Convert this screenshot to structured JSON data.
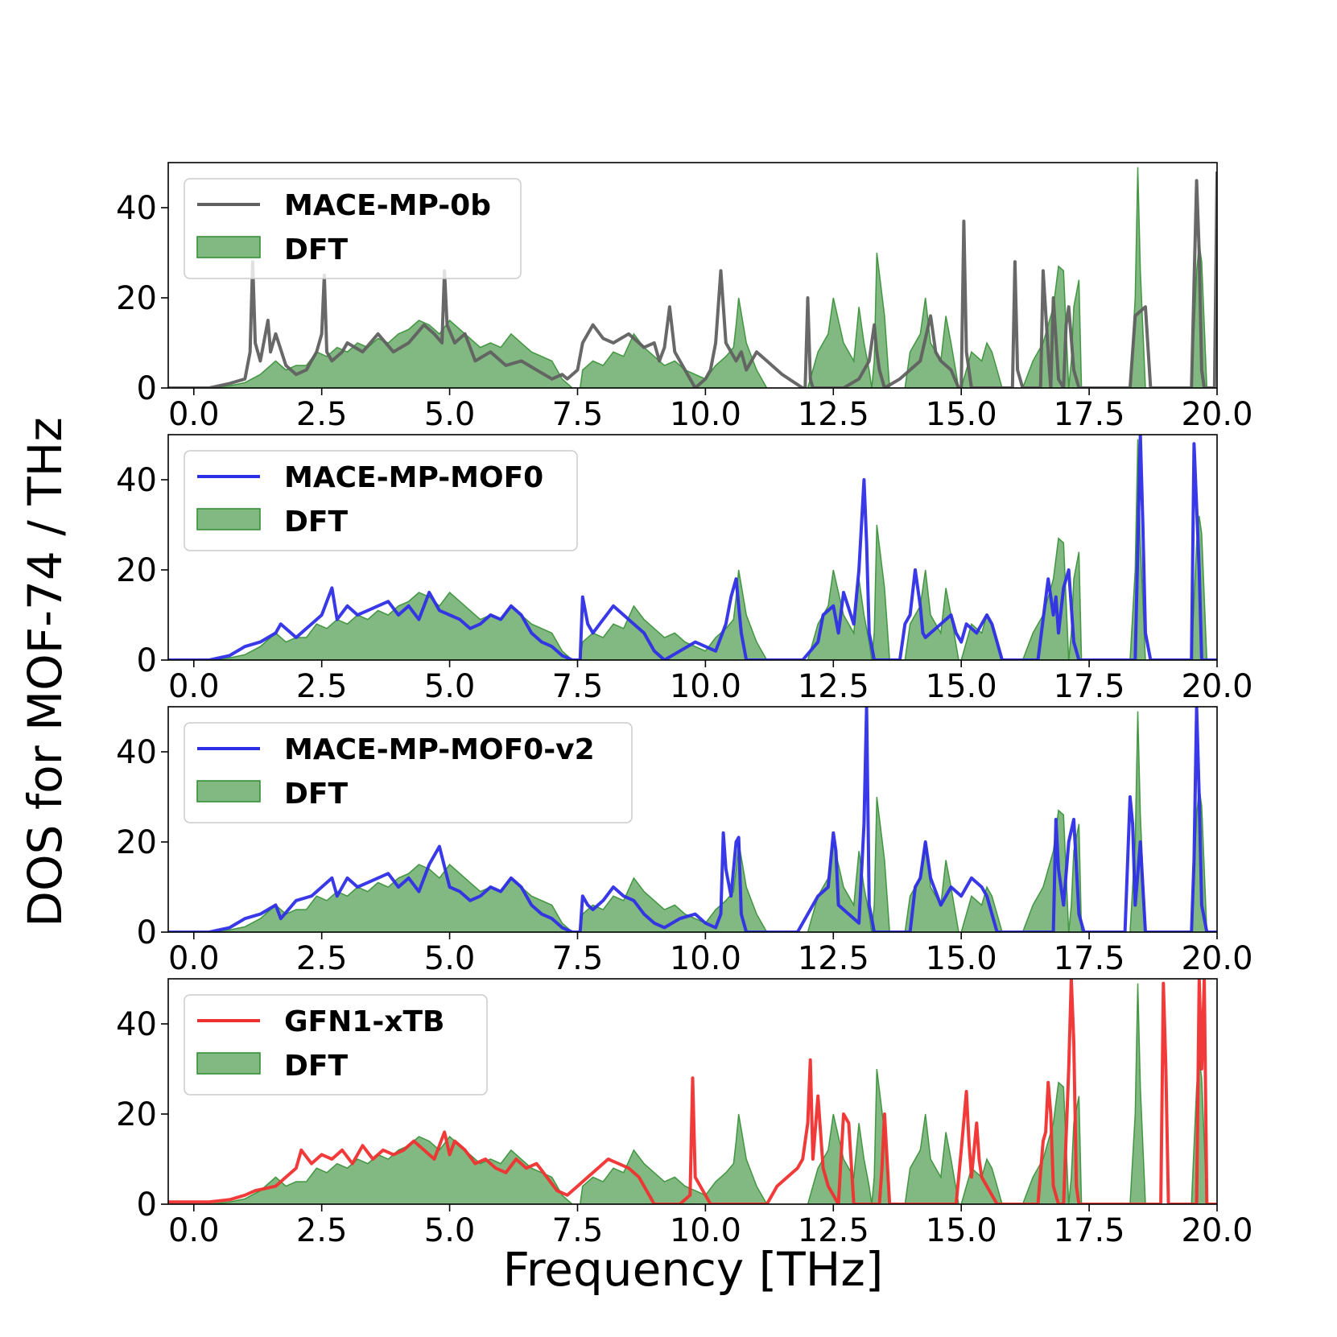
{
  "chart_data": {
    "type": "area",
    "ylabel": "DOS for MOF-74 / THz",
    "xlabel": "Frequency [THz]",
    "xlim": [
      -0.5,
      20.0
    ],
    "ylim": [
      0,
      50
    ],
    "xticks": [
      "0.0",
      "2.5",
      "5.0",
      "7.5",
      "10.0",
      "12.5",
      "15.0",
      "17.5",
      "20.0"
    ],
    "yticks": [
      "0",
      "20",
      "40"
    ],
    "reference": {
      "name": "DFT",
      "color": "#2e8b2e",
      "x": [
        -0.5,
        0.3,
        0.7,
        1.0,
        1.3,
        1.6,
        1.8,
        2.0,
        2.2,
        2.4,
        2.6,
        2.8,
        3.0,
        3.2,
        3.4,
        3.6,
        3.8,
        4.0,
        4.2,
        4.4,
        4.6,
        4.8,
        5.0,
        5.2,
        5.4,
        5.6,
        5.8,
        6.0,
        6.2,
        6.4,
        6.6,
        6.8,
        7.0,
        7.2,
        7.4,
        7.55,
        7.6,
        7.8,
        8.0,
        8.2,
        8.4,
        8.6,
        8.8,
        9.0,
        9.2,
        9.4,
        9.6,
        9.8,
        10.0,
        10.2,
        10.4,
        10.55,
        10.6,
        10.65,
        10.8,
        11.0,
        11.2,
        11.5,
        11.7,
        12.0,
        12.2,
        12.4,
        12.5,
        12.7,
        12.9,
        13.0,
        13.1,
        13.2,
        13.25,
        13.3,
        13.35,
        13.5,
        13.6,
        13.7,
        13.9,
        14.0,
        14.2,
        14.3,
        14.4,
        14.6,
        14.7,
        14.8,
        14.95,
        15.0,
        15.2,
        15.4,
        15.5,
        15.6,
        15.7,
        15.8,
        16.0,
        16.2,
        16.4,
        16.6,
        16.8,
        16.9,
        17.0,
        17.1,
        17.15,
        17.2,
        17.3,
        17.35,
        17.4,
        17.5,
        17.6,
        17.8,
        18.0,
        18.2,
        18.3,
        18.4,
        18.45,
        18.5,
        18.6,
        18.7,
        18.9,
        19.1,
        19.3,
        19.5,
        19.6,
        19.65,
        19.7,
        19.8,
        20.0
      ],
      "y": [
        0,
        0,
        0.5,
        1.2,
        3,
        6,
        4,
        5,
        5,
        8,
        7,
        9,
        8,
        10,
        9,
        11,
        10,
        12,
        13,
        15,
        14,
        12,
        15,
        13,
        11,
        9,
        10,
        9,
        12,
        10,
        8,
        7,
        6,
        2,
        0,
        0,
        4,
        6,
        5,
        8,
        7,
        12,
        9,
        7,
        5,
        6,
        4,
        3,
        2,
        5,
        7,
        9,
        14,
        20,
        10,
        4,
        0,
        0,
        0,
        0,
        8,
        12,
        20,
        10,
        6,
        18,
        10,
        4,
        0,
        6,
        30,
        16,
        0,
        0,
        0,
        8,
        12,
        20,
        10,
        6,
        16,
        10,
        0,
        0,
        8,
        6,
        10,
        8,
        4,
        0,
        0,
        0,
        6,
        10,
        18,
        27,
        26,
        0,
        6,
        18,
        24,
        0,
        0,
        0,
        0,
        0,
        0,
        0,
        0,
        20,
        49,
        26,
        0,
        0,
        0,
        0,
        0,
        0,
        26,
        32,
        28,
        0,
        0
      ]
    },
    "panels": [
      {
        "legend": "MACE-MP-0b",
        "color": "#606060",
        "x": [
          -0.5,
          0.3,
          0.7,
          1.0,
          1.1,
          1.15,
          1.2,
          1.3,
          1.45,
          1.5,
          1.6,
          1.8,
          2.0,
          2.2,
          2.4,
          2.5,
          2.55,
          2.6,
          2.7,
          2.9,
          3.0,
          3.3,
          3.6,
          3.9,
          4.2,
          4.5,
          4.7,
          4.85,
          4.9,
          4.95,
          5.1,
          5.3,
          5.5,
          5.8,
          6.1,
          6.4,
          6.7,
          7.0,
          7.2,
          7.3,
          7.5,
          7.6,
          7.8,
          8.0,
          8.2,
          8.5,
          8.8,
          9.0,
          9.1,
          9.2,
          9.3,
          9.4,
          9.6,
          9.8,
          10.0,
          10.1,
          10.2,
          10.3,
          10.4,
          10.6,
          10.7,
          10.8,
          11.0,
          11.2,
          11.5,
          11.9,
          11.95,
          12.0,
          12.05,
          12.1,
          12.5,
          12.7,
          13.0,
          13.2,
          13.3,
          13.35,
          13.4,
          13.5,
          13.8,
          14.0,
          14.2,
          14.4,
          14.5,
          14.6,
          14.8,
          14.95,
          15.0,
          15.05,
          15.1,
          15.2,
          15.5,
          15.9,
          16.0,
          16.05,
          16.1,
          16.2,
          16.5,
          16.55,
          16.6,
          16.7,
          16.75,
          16.8,
          16.9,
          17.0,
          17.05,
          17.1,
          17.2,
          17.3,
          17.5,
          18.0,
          18.3,
          18.4,
          18.6,
          18.7,
          18.8,
          19.0,
          19.5,
          19.6,
          19.65,
          19.7,
          19.75,
          19.8,
          19.9,
          19.95,
          20.0
        ],
        "y": [
          0,
          0,
          1,
          2,
          8,
          28,
          10,
          6,
          15,
          8,
          12,
          5,
          3,
          4,
          8,
          12,
          25,
          8,
          6,
          8,
          10,
          8,
          12,
          8,
          10,
          14,
          12,
          10,
          26,
          14,
          10,
          12,
          6,
          8,
          5,
          6,
          4,
          2,
          3,
          2,
          4,
          10,
          14,
          11,
          10,
          12,
          9,
          10,
          6,
          9,
          18,
          8,
          4,
          0,
          2,
          4,
          10,
          26,
          10,
          6,
          8,
          4,
          8,
          6,
          3,
          0,
          0,
          20,
          2,
          0,
          0,
          0,
          2,
          6,
          14,
          8,
          4,
          0,
          2,
          4,
          6,
          16,
          8,
          6,
          4,
          0,
          0,
          37,
          8,
          0,
          0,
          0,
          0,
          28,
          4,
          0,
          0,
          0,
          26,
          8,
          0,
          20,
          2,
          0,
          14,
          18,
          4,
          0,
          0,
          0,
          0,
          16,
          18,
          0,
          0,
          0,
          0,
          46,
          30,
          4,
          0,
          0,
          0,
          0,
          48
        ]
      },
      {
        "legend": "MACE-MP-MOF0",
        "color": "#2e2ee6",
        "x": [
          -0.5,
          0.3,
          0.7,
          1.0,
          1.3,
          1.6,
          1.7,
          2.0,
          2.3,
          2.5,
          2.7,
          2.8,
          3.0,
          3.2,
          3.4,
          3.6,
          3.8,
          4.0,
          4.2,
          4.4,
          4.6,
          4.8,
          5.0,
          5.2,
          5.4,
          5.6,
          5.8,
          6.0,
          6.2,
          6.4,
          6.6,
          6.8,
          7.0,
          7.2,
          7.4,
          7.55,
          7.6,
          7.7,
          7.8,
          8.0,
          8.2,
          8.4,
          8.6,
          8.8,
          9.0,
          9.2,
          9.5,
          9.8,
          10.0,
          10.2,
          10.4,
          10.5,
          10.6,
          10.7,
          10.8,
          10.85,
          10.9,
          11.0,
          11.5,
          11.9,
          12.2,
          12.3,
          12.5,
          12.6,
          12.7,
          12.9,
          13.0,
          13.1,
          13.15,
          13.2,
          13.3,
          13.4,
          13.6,
          13.8,
          13.9,
          14.0,
          14.1,
          14.2,
          14.25,
          14.3,
          14.4,
          14.6,
          14.8,
          14.9,
          15.0,
          15.1,
          15.3,
          15.5,
          15.6,
          15.7,
          15.8,
          16.0,
          16.2,
          16.5,
          16.7,
          16.8,
          16.85,
          16.9,
          17.0,
          17.1,
          17.2,
          17.3,
          17.4,
          17.5,
          17.6,
          17.8,
          18.0,
          18.2,
          18.4,
          18.5,
          18.55,
          18.6,
          18.7,
          18.8,
          19.0,
          19.2,
          19.5,
          19.55,
          19.6,
          19.65,
          19.7,
          19.8,
          20.0
        ],
        "y": [
          0,
          0,
          1,
          3,
          4,
          6,
          8,
          5,
          8,
          10,
          16,
          9,
          12,
          10,
          11,
          12,
          13,
          10,
          12,
          9,
          15,
          11,
          10,
          9,
          7,
          8,
          10,
          9,
          12,
          10,
          6,
          4,
          3,
          1,
          0,
          0,
          14,
          8,
          6,
          9,
          12,
          10,
          8,
          6,
          2,
          0,
          2,
          4,
          3,
          2,
          8,
          14,
          18,
          6,
          0,
          0,
          0,
          0,
          0,
          0,
          4,
          10,
          12,
          6,
          15,
          8,
          20,
          40,
          26,
          6,
          0,
          0,
          0,
          0,
          8,
          10,
          20,
          12,
          6,
          5,
          6,
          8,
          10,
          6,
          4,
          8,
          6,
          10,
          8,
          4,
          0,
          0,
          0,
          0,
          18,
          10,
          14,
          6,
          16,
          20,
          4,
          0,
          0,
          0,
          0,
          0,
          0,
          0,
          0,
          50,
          30,
          6,
          0,
          0,
          0,
          0,
          0,
          48,
          34,
          20,
          0,
          0,
          0
        ]
      },
      {
        "legend": "MACE-MP-MOF0-v2",
        "color": "#2e2ee6",
        "x": [
          -0.5,
          0.3,
          0.7,
          1.0,
          1.3,
          1.6,
          1.7,
          2.0,
          2.3,
          2.5,
          2.7,
          2.8,
          3.0,
          3.2,
          3.4,
          3.6,
          3.8,
          4.0,
          4.2,
          4.4,
          4.6,
          4.8,
          5.0,
          5.2,
          5.4,
          5.6,
          5.8,
          6.0,
          6.2,
          6.4,
          6.6,
          6.8,
          7.0,
          7.2,
          7.4,
          7.55,
          7.6,
          7.7,
          7.8,
          8.0,
          8.2,
          8.4,
          8.6,
          8.8,
          9.0,
          9.2,
          9.5,
          9.8,
          10.0,
          10.2,
          10.3,
          10.35,
          10.4,
          10.5,
          10.6,
          10.65,
          10.7,
          10.8,
          11.0,
          11.5,
          11.8,
          12.0,
          12.2,
          12.4,
          12.5,
          12.55,
          12.6,
          12.8,
          13.0,
          13.1,
          13.15,
          13.2,
          13.3,
          13.5,
          13.8,
          14.0,
          14.1,
          14.2,
          14.3,
          14.4,
          14.6,
          14.8,
          15.0,
          15.2,
          15.4,
          15.5,
          15.6,
          15.7,
          15.8,
          16.0,
          16.3,
          16.6,
          16.8,
          16.85,
          16.9,
          17.0,
          17.1,
          17.2,
          17.3,
          17.4,
          17.5,
          17.8,
          18.0,
          18.2,
          18.3,
          18.35,
          18.4,
          18.5,
          18.6,
          18.8,
          19.0,
          19.3,
          19.5,
          19.55,
          19.6,
          19.65,
          19.7,
          19.8,
          20.0
        ],
        "y": [
          0,
          0,
          1,
          3,
          4,
          6,
          3,
          7,
          8,
          10,
          12,
          8,
          12,
          10,
          11,
          12,
          13,
          10,
          12,
          9,
          15,
          19,
          10,
          9,
          7,
          8,
          10,
          9,
          12,
          10,
          6,
          4,
          3,
          1,
          0,
          0,
          8,
          6,
          5,
          7,
          10,
          8,
          7,
          4,
          2,
          1,
          3,
          4,
          2,
          1,
          4,
          22,
          14,
          8,
          20,
          21,
          4,
          0,
          0,
          0,
          0,
          4,
          8,
          10,
          22,
          18,
          6,
          4,
          2,
          24,
          50,
          6,
          0,
          0,
          0,
          0,
          10,
          12,
          20,
          12,
          6,
          10,
          8,
          12,
          10,
          8,
          4,
          0,
          0,
          0,
          0,
          0,
          0,
          25,
          14,
          6,
          20,
          25,
          4,
          0,
          0,
          0,
          0,
          0,
          30,
          24,
          6,
          20,
          0,
          0,
          0,
          0,
          0,
          16,
          50,
          30,
          6,
          0,
          0
        ]
      },
      {
        "legend": "GFN1-xTB",
        "color": "#f03030",
        "x": [
          -0.5,
          0.3,
          0.7,
          1.0,
          1.2,
          1.4,
          1.6,
          1.8,
          2.0,
          2.1,
          2.3,
          2.5,
          2.7,
          2.9,
          3.1,
          3.3,
          3.5,
          3.7,
          3.9,
          4.1,
          4.3,
          4.5,
          4.7,
          4.9,
          5.0,
          5.1,
          5.3,
          5.5,
          5.7,
          5.9,
          6.1,
          6.3,
          6.5,
          6.7,
          6.9,
          7.1,
          7.3,
          7.5,
          7.7,
          7.9,
          8.1,
          8.3,
          8.5,
          8.7,
          8.8,
          8.9,
          9.0,
          9.2,
          9.5,
          9.7,
          9.75,
          9.8,
          9.9,
          10.0,
          10.1,
          10.3,
          10.5,
          10.8,
          11.0,
          11.2,
          11.4,
          11.6,
          11.8,
          11.9,
          12.0,
          12.05,
          12.1,
          12.2,
          12.3,
          12.4,
          12.5,
          12.6,
          12.7,
          12.8,
          12.9,
          13.0,
          13.2,
          13.4,
          13.45,
          13.5,
          13.6,
          13.8,
          14.0,
          14.3,
          14.6,
          14.9,
          15.0,
          15.1,
          15.15,
          15.2,
          15.3,
          15.35,
          15.4,
          15.5,
          15.7,
          16.0,
          16.3,
          16.5,
          16.6,
          16.65,
          16.7,
          16.75,
          16.8,
          16.9,
          17.0,
          17.1,
          17.15,
          17.2,
          17.25,
          17.3,
          17.35,
          17.4,
          17.6,
          17.8,
          18.0,
          18.5,
          18.9,
          18.95,
          19.0,
          19.05,
          19.1,
          19.3,
          19.5,
          19.6,
          19.65,
          19.7,
          19.75,
          19.8,
          20.0
        ],
        "y": [
          0.5,
          0.5,
          1,
          2,
          3,
          3.5,
          4,
          6,
          8,
          12,
          9,
          11,
          10,
          12,
          9,
          13,
          10,
          12,
          11,
          12,
          14,
          12,
          10,
          16,
          11,
          14,
          12,
          9,
          10,
          8,
          7,
          10,
          8,
          9,
          6,
          3,
          2,
          4,
          6,
          8,
          10,
          9,
          8,
          6,
          4,
          2,
          0,
          0,
          0,
          2,
          28,
          6,
          4,
          2,
          0,
          0,
          0,
          0,
          0,
          0,
          4,
          6,
          8,
          10,
          18,
          32,
          10,
          24,
          8,
          4,
          2,
          0,
          20,
          18,
          0,
          0,
          0,
          0,
          8,
          20,
          0,
          0,
          0,
          0,
          0,
          0,
          12,
          25,
          14,
          6,
          18,
          10,
          6,
          4,
          0,
          0,
          0,
          0,
          14,
          16,
          27,
          20,
          4,
          0,
          0,
          30,
          50,
          36,
          4,
          0,
          0,
          0,
          0,
          0,
          0,
          0,
          0,
          49,
          30,
          0,
          0,
          0,
          0,
          0,
          50,
          30,
          50,
          0,
          0
        ]
      }
    ]
  }
}
